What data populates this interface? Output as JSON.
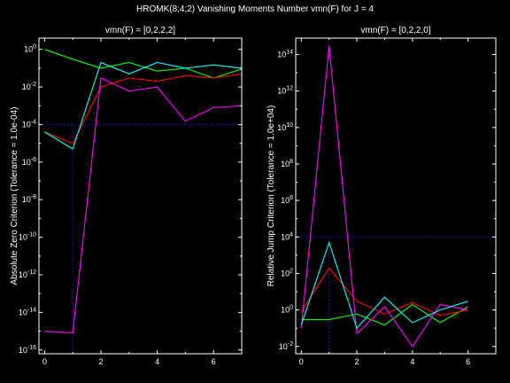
{
  "figure": {
    "title": "HROMK(8;4;2) Vanishing Moments Number vmn(F) for J = 4"
  },
  "chart_data": [
    {
      "type": "line",
      "title": "vmn(F) = [0,2,2,2]",
      "xlabel": "",
      "ylabel": "Absolute Zero Criterion (Tolerance = 1.0e-04)",
      "xlim": [
        -0.2,
        7
      ],
      "ylim_log10": [
        -16.2,
        0.6
      ],
      "yscale": "log",
      "xticks": [
        "0",
        "2",
        "4",
        "6"
      ],
      "yticks": [
        {
          "base": "10",
          "exp": "0"
        },
        {
          "base": "10",
          "exp": "-2"
        },
        {
          "base": "10",
          "exp": "-4"
        },
        {
          "base": "10",
          "exp": "-6"
        },
        {
          "base": "10",
          "exp": "-8"
        },
        {
          "base": "10",
          "exp": "-10"
        },
        {
          "base": "10",
          "exp": "-12"
        },
        {
          "base": "10",
          "exp": "-14"
        },
        {
          "base": "10",
          "exp": "-16"
        }
      ],
      "reference": {
        "x": 1,
        "y": 0.0001,
        "color": "#1c1cd0"
      },
      "x": [
        0,
        1,
        2,
        3,
        4,
        5,
        6,
        7
      ],
      "series": [
        {
          "color": "#00ff00",
          "values": [
            1.0,
            0.3,
            0.1,
            0.2,
            0.07,
            0.1,
            0.03,
            0.09
          ]
        },
        {
          "color": "#ff0000",
          "values": [
            4e-05,
            1e-05,
            0.01,
            0.03,
            0.02,
            0.04,
            0.03,
            0.05
          ]
        },
        {
          "color": "#ff00ff",
          "values": [
            1e-15,
            8e-16,
            0.03,
            0.006,
            0.01,
            0.00015,
            0.0008,
            0.001
          ]
        },
        {
          "color": "#00ffff",
          "values": [
            4e-05,
            5e-06,
            0.2,
            0.05,
            0.2,
            0.1,
            0.15,
            0.1
          ]
        }
      ]
    },
    {
      "type": "line",
      "title": "vmn(F) = [0,2,2,0]",
      "xlabel": "",
      "ylabel": "Relative Jump Criterion (Tolerance = 1.0e+04)",
      "xlim": [
        -0.2,
        7
      ],
      "ylim_log10": [
        -2.4,
        14.9
      ],
      "yscale": "log",
      "xticks": [
        "0",
        "2",
        "4",
        "6"
      ],
      "yticks": [
        {
          "base": "10",
          "exp": "-2"
        },
        {
          "base": "10",
          "exp": "0"
        },
        {
          "base": "10",
          "exp": "2"
        },
        {
          "base": "10",
          "exp": "4"
        },
        {
          "base": "10",
          "exp": "6"
        },
        {
          "base": "10",
          "exp": "8"
        },
        {
          "base": "10",
          "exp": "10"
        },
        {
          "base": "10",
          "exp": "12"
        },
        {
          "base": "10",
          "exp": "14"
        }
      ],
      "reference": {
        "x": 1,
        "y": 10000,
        "color": "#1c1cd0"
      },
      "x": [
        0,
        1,
        2,
        3,
        4,
        5,
        6
      ],
      "series": [
        {
          "color": "#00ff00",
          "values": [
            0.3,
            0.3,
            0.6,
            0.15,
            2.0,
            0.2,
            1.5
          ]
        },
        {
          "color": "#ff0000",
          "values": [
            0.8,
            200,
            3.0,
            0.6,
            2.5,
            0.5,
            1.0
          ]
        },
        {
          "color": "#ff00ff",
          "values": [
            0.1,
            300000000000000.0,
            0.05,
            1.5,
            0.01,
            2.0,
            1.0
          ]
        },
        {
          "color": "#00ffff",
          "values": [
            0.15,
            5000,
            0.1,
            5.0,
            0.2,
            1.0,
            3.0
          ]
        }
      ]
    }
  ]
}
